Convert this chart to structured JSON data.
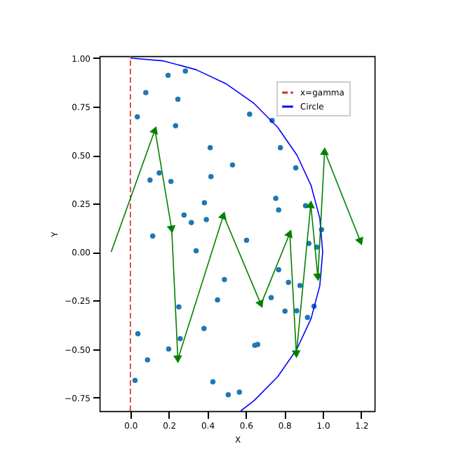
{
  "chart_data": {
    "type": "scatter",
    "xlabel": "X",
    "ylabel": "Y",
    "xlim": [
      -0.16,
      1.27
    ],
    "ylim": [
      -0.82,
      1.01
    ],
    "xticks": [
      {
        "value": 0,
        "label": "0.0"
      },
      {
        "value": 0.2,
        "label": "0.2"
      },
      {
        "value": 0.4,
        "label": "0.4"
      },
      {
        "value": 0.6,
        "label": "0.6"
      },
      {
        "value": 0.8,
        "label": "0.8"
      },
      {
        "value": 1,
        "label": "1.0"
      },
      {
        "value": 1.2,
        "label": "1.2"
      }
    ],
    "yticks": [
      {
        "value": -0.75,
        "label": "−0.75"
      },
      {
        "value": -0.5,
        "label": "−0.50"
      },
      {
        "value": -0.25,
        "label": "−0.25"
      },
      {
        "value": 0,
        "label": "0.00"
      },
      {
        "value": 0.25,
        "label": "0.25"
      },
      {
        "value": 0.5,
        "label": "0.50"
      },
      {
        "value": 0.75,
        "label": "0.75"
      },
      {
        "value": 1,
        "label": "1.00"
      }
    ],
    "legend": "top right",
    "grid": false,
    "series": [
      {
        "color": "#1f77b4",
        "marker": "circle",
        "x": [
          0.196,
          0.286,
          0.08,
          0.247,
          0.036,
          0.62,
          0.235,
          0.415,
          0.531,
          0.15,
          0.102,
          0.211,
          0.419,
          0.385,
          0.279,
          0.317,
          0.395,
          0.116,
          0.604,
          0.737,
          0.78,
          0.86,
          0.756,
          0.771,
          0.911,
          0.994,
          0.928,
          0.969,
          0.771,
          0.822,
          0.882,
          0.732,
          0.804,
          0.865,
          0.921,
          0.955,
          0.647,
          0.662,
          0.429,
          0.509,
          0.567,
          0.342,
          0.489,
          0.453,
          0.252,
          0.039,
          0.383,
          0.259,
          0.199,
          0.089,
          0.024
        ],
        "values": [
          0.911,
          0.933,
          0.822,
          0.788,
          0.697,
          0.711,
          0.651,
          0.538,
          0.449,
          0.408,
          0.371,
          0.364,
          0.389,
          0.254,
          0.191,
          0.152,
          0.167,
          0.082,
          0.061,
          0.678,
          0.538,
          0.434,
          0.277,
          0.217,
          0.239,
          0.116,
          0.044,
          0.025,
          -0.091,
          -0.156,
          -0.173,
          -0.235,
          -0.305,
          -0.303,
          -0.337,
          -0.279,
          -0.481,
          -0.476,
          -0.669,
          -0.736,
          -0.722,
          0.006,
          -0.142,
          -0.247,
          -0.283,
          -0.421,
          -0.394,
          -0.447,
          -0.5,
          -0.556,
          -0.662
        ]
      },
      {
        "type": "line",
        "name": "x=gamma",
        "color": "#d62728",
        "line_style": "dashed",
        "x": [
          0,
          0
        ],
        "values": [
          -0.82,
          1.01
        ]
      },
      {
        "type": "line",
        "name": "Circle",
        "color": "#0000ff",
        "line_style": "solid",
        "x": [
          0,
          0.174,
          0.342,
          0.5,
          0.643,
          0.766,
          0.866,
          0.94,
          0.985,
          1,
          0.985,
          0.94,
          0.866,
          0.766,
          0.643,
          0.574
        ],
        "values": [
          1,
          0.985,
          0.94,
          0.866,
          0.766,
          0.643,
          0.5,
          0.342,
          0.174,
          0,
          -0.174,
          -0.342,
          -0.5,
          -0.643,
          -0.766,
          -0.819
        ]
      },
      {
        "type": "line",
        "color": "#008000",
        "line_style": "solid",
        "marker": "triangle",
        "x": [
          -0.1,
          0.128,
          0.215,
          0.247,
          0.484,
          0.679,
          0.829,
          0.863,
          0.938,
          0.975,
          1.01,
          1.197
        ],
        "values": [
          0,
          0.63,
          0.116,
          -0.553,
          0.19,
          -0.27,
          0.097,
          -0.527,
          0.246,
          -0.13,
          0.52,
          0.053
        ]
      }
    ]
  }
}
